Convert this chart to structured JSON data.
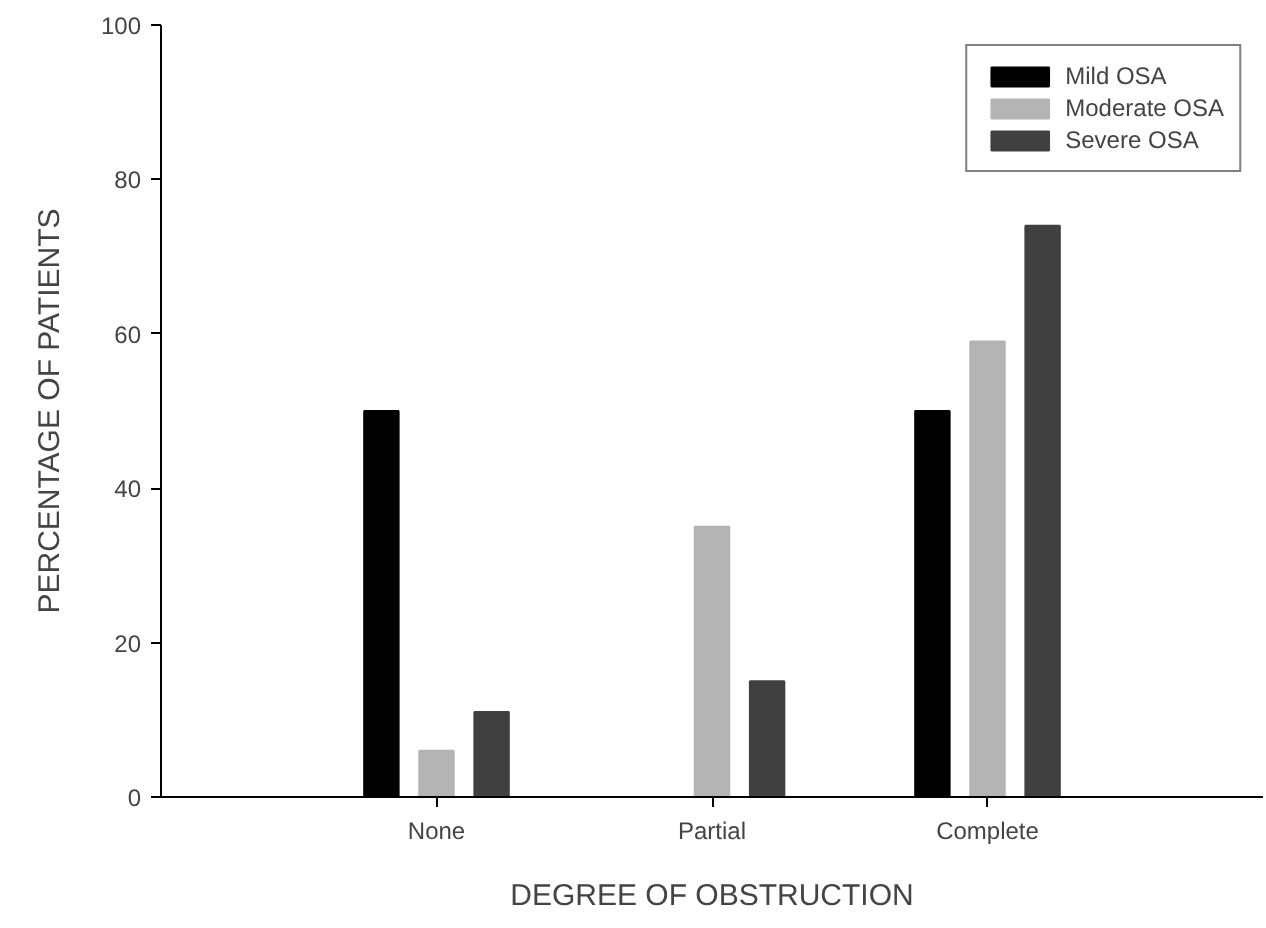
{
  "chart_data": {
    "type": "bar",
    "xlabel": "DEGREE OF OBSTRUCTION",
    "ylabel": "PERCENTAGE OF PATIENTS",
    "categories": [
      "None",
      "Partial",
      "Complete"
    ],
    "series": [
      {
        "name": "Mild OSA",
        "color": "#000000",
        "values": [
          50,
          0,
          50
        ]
      },
      {
        "name": "Moderate OSA",
        "color": "#b4b4b4",
        "values": [
          6,
          35,
          59
        ]
      },
      {
        "name": "Severe OSA",
        "color": "#404040",
        "values": [
          11,
          15,
          74
        ]
      }
    ],
    "ylim": [
      0,
      100
    ],
    "yticks": [
      0,
      20,
      40,
      60,
      80,
      100
    ],
    "grid": false,
    "legend": "top right"
  }
}
